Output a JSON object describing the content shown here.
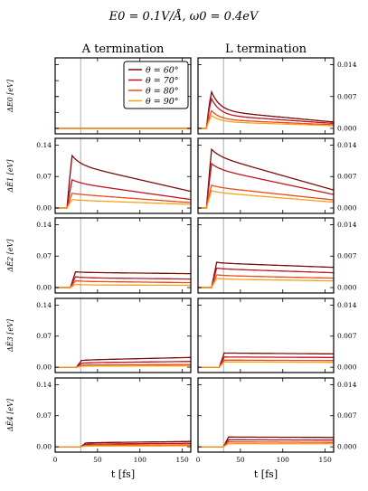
{
  "figure": {
    "title": "E0 = 0.1V/Å,   ω0 = 0.4eV",
    "col_titles": [
      "A termination",
      "L termination"
    ],
    "xlabel": "t [fs]",
    "row_ylabels": [
      "ΔE0 [eV]",
      "ΔĒ1 [eV]",
      "ΔĒ2 [eV]",
      "ΔĒ3 [eV]",
      "ΔĒ4 [eV]"
    ],
    "left_yticks": [
      "0.00",
      "0.07",
      "0.14"
    ],
    "right_yticks": [
      "0.000",
      "0.007",
      "0.014"
    ],
    "xticks": [
      "0",
      "50",
      "100",
      "150"
    ]
  },
  "chart_data": {
    "type": "line",
    "x_range": [
      0,
      160
    ],
    "left_ylim": [
      -0.012,
      0.155
    ],
    "right_ylim": [
      -0.0012,
      0.0155
    ],
    "pulse_time_fs": 30,
    "series": [
      {
        "name": "θ = 60°",
        "color": "#7a0c0c"
      },
      {
        "name": "θ = 70°",
        "color": "#c0151d"
      },
      {
        "name": "θ = 80°",
        "color": "#ec4a1d"
      },
      {
        "name": "θ = 90°",
        "color": "#f7a21b"
      }
    ],
    "legend_loc": "upper right of the top-left panel",
    "panels": [
      {
        "row": 0,
        "col": "A",
        "curves": [
          {
            "rise_fs": 30,
            "plateau": 0,
            "end": 0
          },
          {
            "rise_fs": 30,
            "plateau": 0,
            "end": 0
          },
          {
            "rise_fs": 30,
            "plateau": 0,
            "end": 0
          },
          {
            "rise_fs": 30,
            "plateau": 0,
            "end": 0
          }
        ]
      },
      {
        "row": 0,
        "col": "L",
        "curves": [
          {
            "rise_fs": 10,
            "peak": 0.0115,
            "plateau": 0.004,
            "end": 0.0014
          },
          {
            "rise_fs": 10,
            "peak": 0.0095,
            "plateau": 0.003,
            "end": 0.0011
          },
          {
            "rise_fs": 10,
            "peak": 0.0055,
            "plateau": 0.002,
            "end": 0.0008
          },
          {
            "rise_fs": 10,
            "peak": 0.004,
            "plateau": 0.0015,
            "end": 0.0006
          }
        ]
      },
      {
        "row": 1,
        "col": "A",
        "curves": [
          {
            "rise_fs": 14,
            "peak": 0.135,
            "plateau": 0.1,
            "end": 0.037
          },
          {
            "rise_fs": 14,
            "peak": 0.07,
            "plateau": 0.058,
            "end": 0.019
          },
          {
            "rise_fs": 14,
            "peak": 0.035,
            "plateau": 0.032,
            "end": 0.012
          },
          {
            "rise_fs": 14,
            "peak": 0.02,
            "plateau": 0.018,
            "end": 0.008
          }
        ]
      },
      {
        "row": 1,
        "col": "L",
        "curves": [
          {
            "rise_fs": 10,
            "peak": 0.0145,
            "plateau": 0.012,
            "end": 0.004
          },
          {
            "rise_fs": 10,
            "peak": 0.011,
            "plateau": 0.009,
            "end": 0.003
          },
          {
            "rise_fs": 10,
            "peak": 0.0055,
            "plateau": 0.0048,
            "end": 0.0018
          },
          {
            "rise_fs": 10,
            "peak": 0.0042,
            "plateau": 0.0036,
            "end": 0.0013
          }
        ]
      },
      {
        "row": 2,
        "col": "A",
        "curves": [
          {
            "rise_fs": 18,
            "peak": 0.036,
            "plateau": 0.034,
            "end": 0.031
          },
          {
            "rise_fs": 18,
            "peak": 0.026,
            "plateau": 0.022,
            "end": 0.019
          },
          {
            "rise_fs": 18,
            "peak": 0.016,
            "plateau": 0.014,
            "end": 0.011
          },
          {
            "rise_fs": 18,
            "peak": 0.008,
            "plateau": 0.006,
            "end": 0.005
          }
        ]
      },
      {
        "row": 2,
        "col": "L",
        "curves": [
          {
            "rise_fs": 16,
            "peak": 0.0058,
            "plateau": 0.0055,
            "end": 0.0045
          },
          {
            "rise_fs": 16,
            "peak": 0.0045,
            "plateau": 0.0042,
            "end": 0.0033
          },
          {
            "rise_fs": 16,
            "peak": 0.003,
            "plateau": 0.0027,
            "end": 0.0021
          },
          {
            "rise_fs": 16,
            "peak": 0.0022,
            "plateau": 0.0019,
            "end": 0.0015
          }
        ]
      },
      {
        "row": 3,
        "col": "A",
        "curves": [
          {
            "rise_fs": 25,
            "peak": 0.014,
            "plateau": 0.016,
            "end": 0.022
          },
          {
            "rise_fs": 25,
            "peak": 0.008,
            "plateau": 0.01,
            "end": 0.013
          },
          {
            "rise_fs": 25,
            "peak": 0.004,
            "plateau": 0.005,
            "end": 0.006
          },
          {
            "rise_fs": 25,
            "peak": 0.002,
            "plateau": 0.0025,
            "end": 0.003
          }
        ]
      },
      {
        "row": 3,
        "col": "L",
        "curves": [
          {
            "rise_fs": 25,
            "peak": 0.0032,
            "plateau": 0.0032,
            "end": 0.003
          },
          {
            "rise_fs": 25,
            "peak": 0.0023,
            "plateau": 0.0023,
            "end": 0.0022
          },
          {
            "rise_fs": 25,
            "peak": 0.0016,
            "plateau": 0.0016,
            "end": 0.0015
          },
          {
            "rise_fs": 25,
            "peak": 0.0012,
            "plateau": 0.0012,
            "end": 0.0011
          }
        ]
      },
      {
        "row": 4,
        "col": "A",
        "curves": [
          {
            "rise_fs": 30,
            "peak": 0.008,
            "plateau": 0.009,
            "end": 0.012
          },
          {
            "rise_fs": 30,
            "peak": 0.005,
            "plateau": 0.006,
            "end": 0.008
          },
          {
            "rise_fs": 30,
            "peak": 0.003,
            "plateau": 0.0035,
            "end": 0.0045
          },
          {
            "rise_fs": 30,
            "peak": 0.0015,
            "plateau": 0.0018,
            "end": 0.002
          }
        ]
      },
      {
        "row": 4,
        "col": "L",
        "curves": [
          {
            "rise_fs": 30,
            "peak": 0.0022,
            "plateau": 0.0022,
            "end": 0.0021
          },
          {
            "rise_fs": 30,
            "peak": 0.0016,
            "plateau": 0.0016,
            "end": 0.0015
          },
          {
            "rise_fs": 30,
            "peak": 0.0011,
            "plateau": 0.0011,
            "end": 0.001
          },
          {
            "rise_fs": 30,
            "peak": 0.0007,
            "plateau": 0.0007,
            "end": 0.0007
          }
        ]
      }
    ]
  }
}
